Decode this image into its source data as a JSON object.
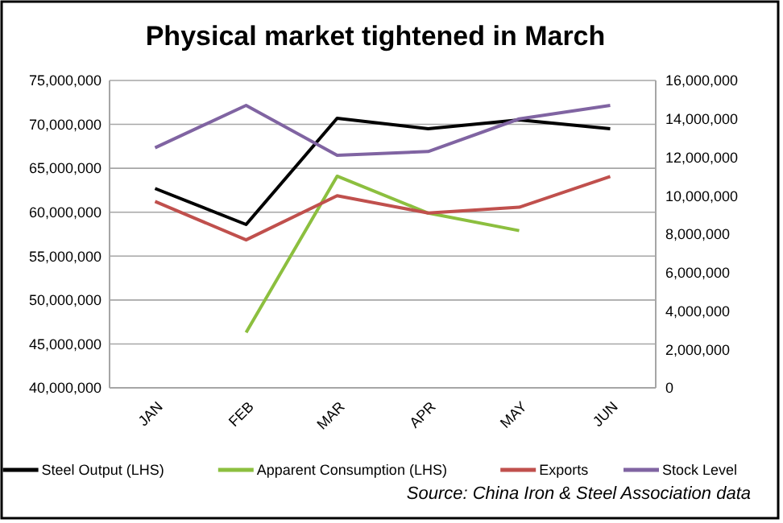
{
  "chart_data": {
    "type": "line",
    "title": "Physical market tightened in March",
    "categories": [
      "JAN",
      "FEB",
      "MAR",
      "APR",
      "MAY",
      "JUN"
    ],
    "series": [
      {
        "name": "Steel Output (LHS)",
        "color": "#000000",
        "values": [
          62700000,
          58600000,
          70700000,
          69500000,
          70500000,
          69500000
        ]
      },
      {
        "name": "Apparent Consumption (LHS)",
        "color": "#8cbf3f",
        "values": [
          null,
          46300000,
          64100000,
          59900000,
          57900000,
          null
        ]
      },
      {
        "name": "Exports",
        "color": "#c0504d",
        "axis": "y2",
        "values": [
          9700000,
          7700000,
          10000000,
          9100000,
          9400000,
          11000000
        ]
      },
      {
        "name": "Stock Level",
        "color": "#8064a2",
        "axis": "y2",
        "values": [
          12500000,
          14700000,
          12100000,
          12300000,
          14000000,
          14700000
        ]
      }
    ],
    "ylim": [
      40000000,
      75000000
    ],
    "yticks": [
      {
        "value": 40000000,
        "label": "40,000,000"
      },
      {
        "value": 45000000,
        "label": "45,000,000"
      },
      {
        "value": 50000000,
        "label": "50,000,000"
      },
      {
        "value": 55000000,
        "label": "55,000,000"
      },
      {
        "value": 60000000,
        "label": "60,000,000"
      },
      {
        "value": 65000000,
        "label": "65,000,000"
      },
      {
        "value": 70000000,
        "label": "70,000,000"
      },
      {
        "value": 75000000,
        "label": "75,000,000"
      }
    ],
    "y2lim": [
      0,
      16000000
    ],
    "y2ticks": [
      0,
      {
        "value": 2000000,
        "label": "2,000,000"
      },
      {
        "value": 4000000,
        "label": "4,000,000"
      },
      {
        "value": 6000000,
        "label": "6,000,000"
      },
      {
        "value": 8000000,
        "label": "8,000,000"
      },
      {
        "value": 10000000,
        "label": "10,000,000"
      },
      {
        "value": 12000000,
        "label": "12,000,000"
      },
      {
        "value": 14000000,
        "label": "14,000,000"
      },
      {
        "value": 16000000,
        "label": "16,000,000"
      }
    ],
    "grid": "y",
    "legend": "bottom",
    "marker": "none",
    "line_style": "solid",
    "annotations": [
      "Source: China Iron & Steel Association data"
    ]
  }
}
